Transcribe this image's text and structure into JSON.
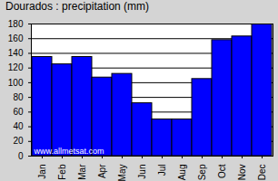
{
  "chart_data": {
    "type": "bar",
    "title": "Dourados : precipitation (mm)",
    "categories": [
      "Jan",
      "Feb",
      "Mar",
      "Apr",
      "May",
      "Jun",
      "Jul",
      "Aug",
      "Sep",
      "Oct",
      "Nov",
      "Dec"
    ],
    "values": [
      135,
      125,
      135,
      107,
      112,
      72,
      50,
      50,
      105,
      158,
      163,
      180
    ],
    "color": "#0000ff",
    "ylim": [
      0,
      180
    ],
    "yticks": [
      0,
      20,
      40,
      60,
      80,
      100,
      120,
      140,
      160,
      180
    ],
    "grid": true,
    "annotations": [
      "www.allmetsat.com"
    ]
  }
}
